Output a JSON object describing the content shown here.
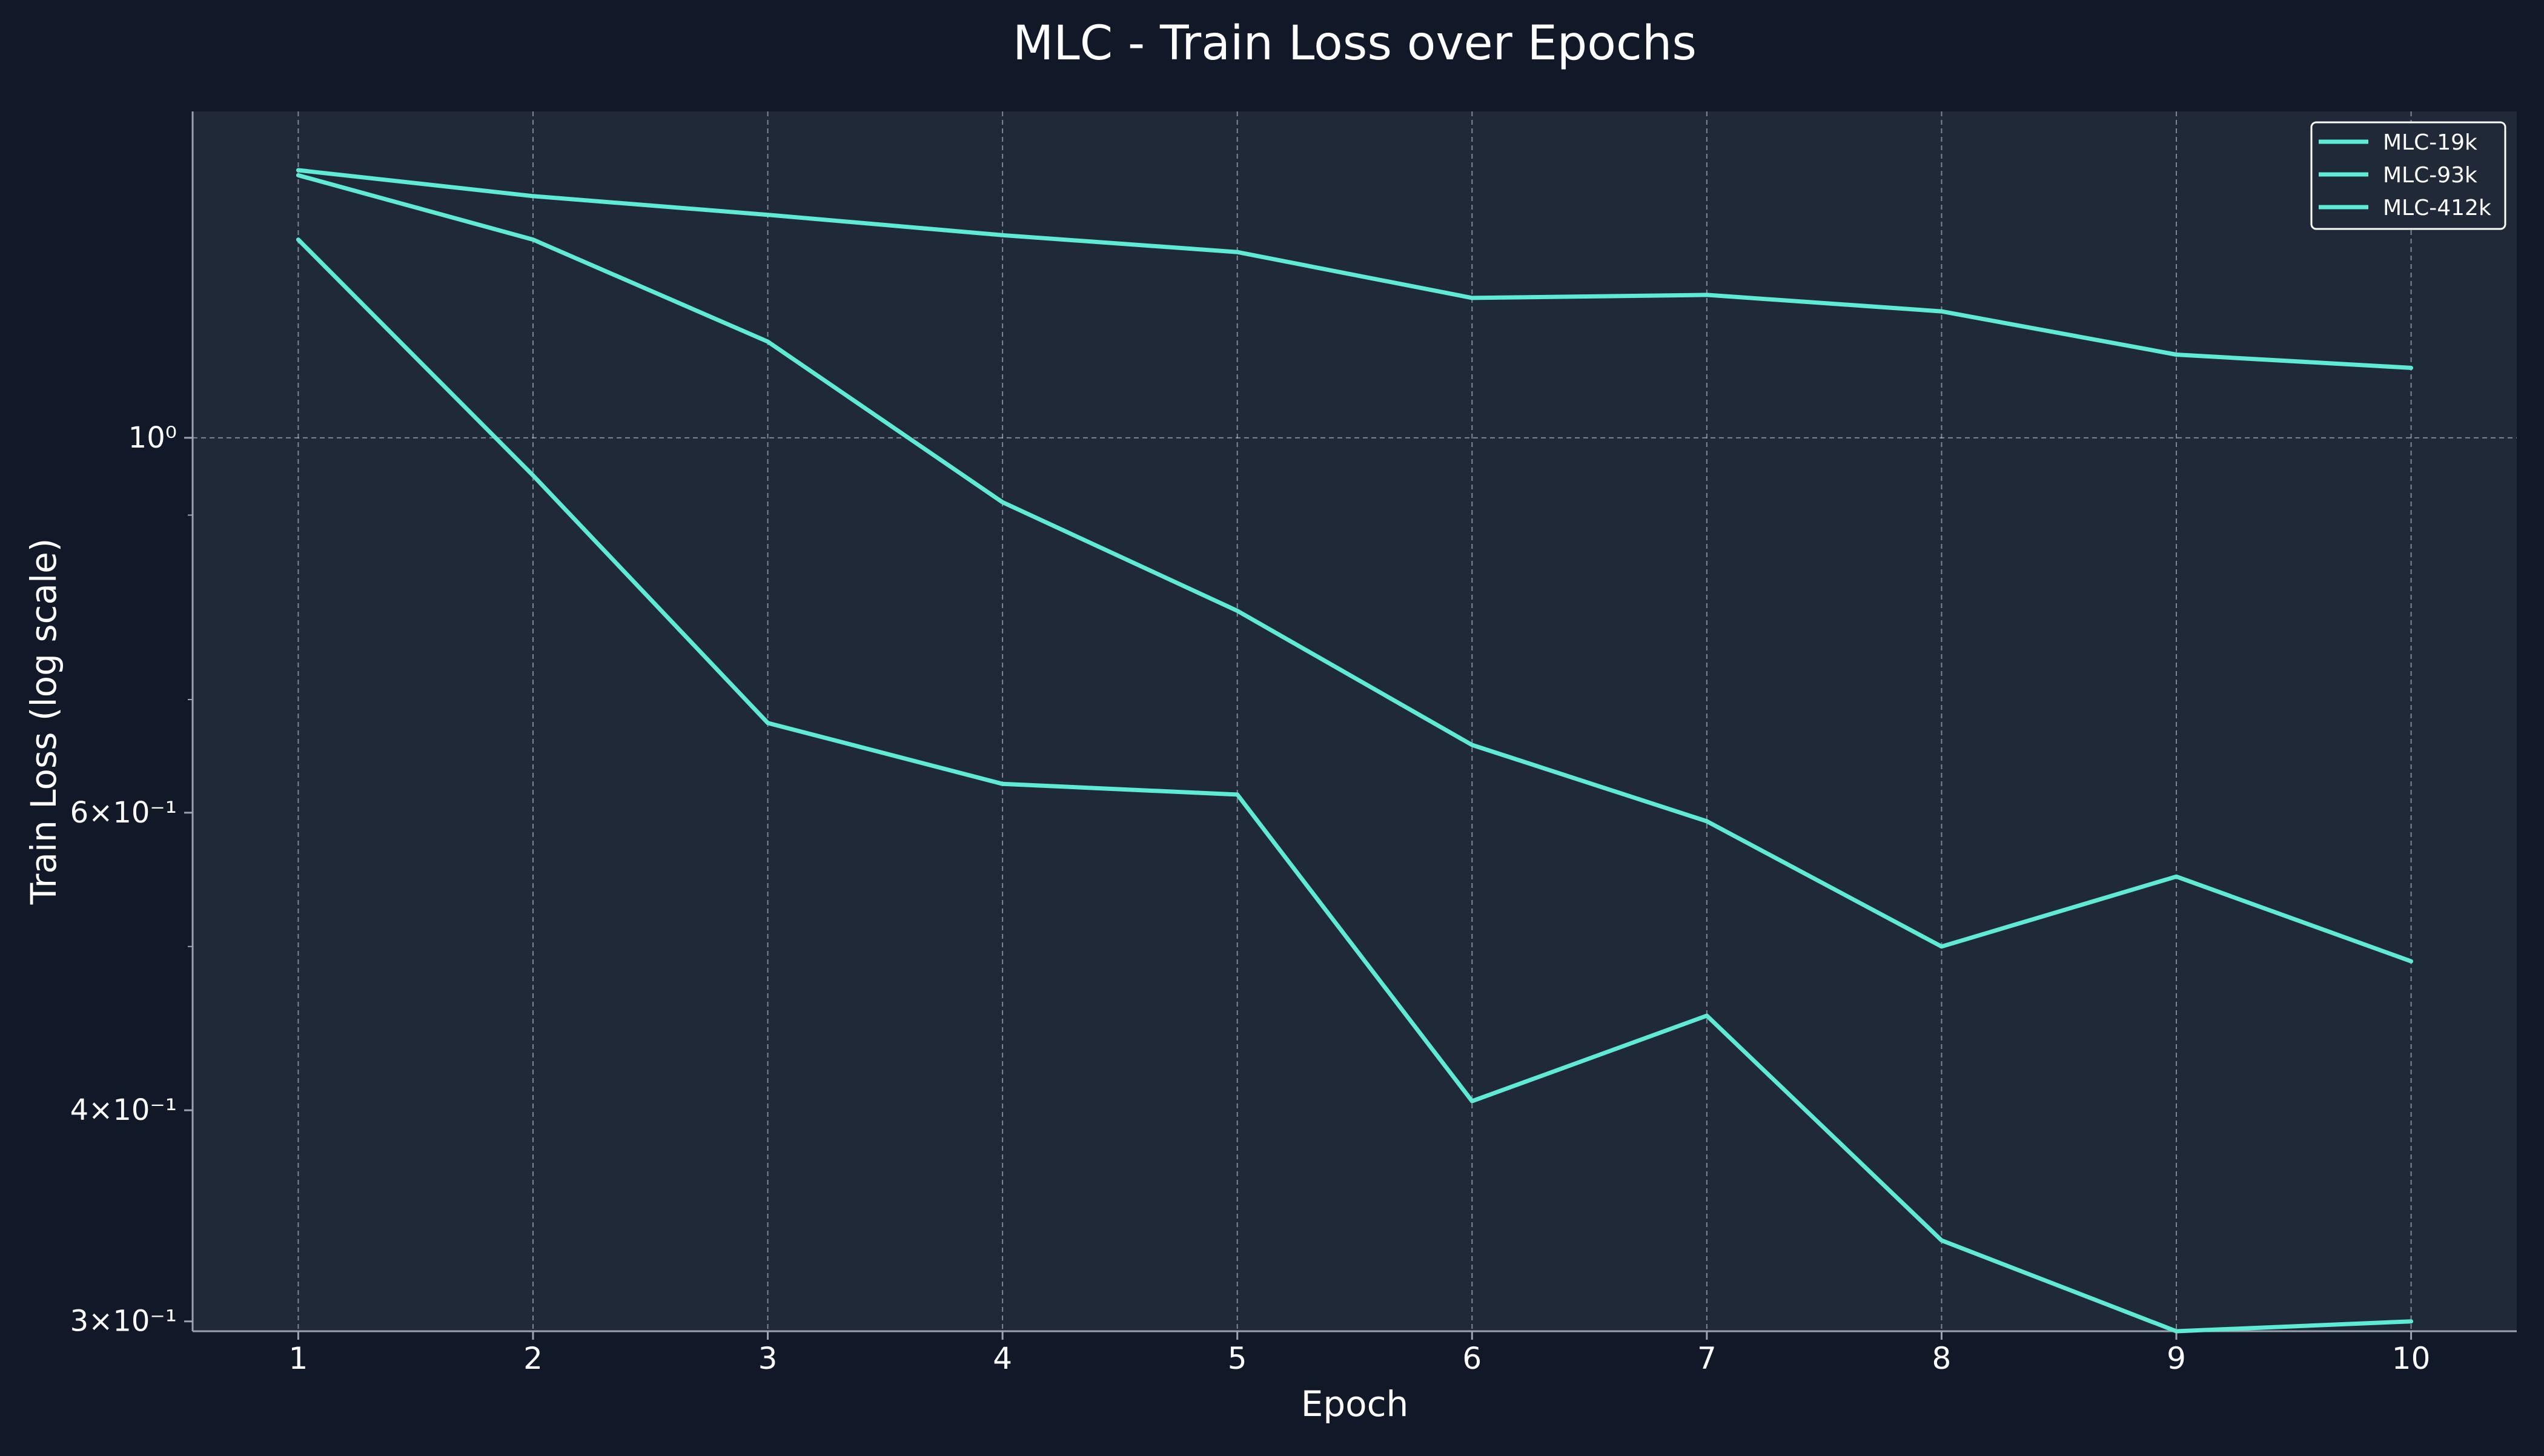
{
  "chart_data": {
    "type": "line",
    "title": "MLC - Train Loss over Epochs",
    "xlabel": "Epoch",
    "ylabel": "Train Loss (log scale)",
    "yscale": "log",
    "x": [
      1,
      2,
      3,
      4,
      5,
      6,
      7,
      8,
      9,
      10
    ],
    "xlim": [
      0.55,
      10.45
    ],
    "ylim": [
      0.296,
      1.56
    ],
    "series": [
      {
        "name": "MLC-19k",
        "values": [
          1.44,
          1.39,
          1.355,
          1.318,
          1.288,
          1.21,
          1.215,
          1.188,
          1.12,
          1.1
        ]
      },
      {
        "name": "MLC-93k",
        "values": [
          1.43,
          1.31,
          1.14,
          0.916,
          0.79,
          0.658,
          0.593,
          0.5,
          0.55,
          0.49
        ]
      },
      {
        "name": "MLC-412k",
        "values": [
          1.31,
          0.95,
          0.678,
          0.624,
          0.615,
          0.405,
          0.455,
          0.335,
          0.296,
          0.3
        ]
      }
    ],
    "y_major_ticks": [
      {
        "value": 1.0,
        "label": "10⁰"
      },
      {
        "value": 0.6,
        "label": "6×10⁻¹"
      },
      {
        "value": 0.4,
        "label": "4×10⁻¹"
      },
      {
        "value": 0.3,
        "label": "3×10⁻¹"
      }
    ],
    "y_minor_ticks": [
      0.9,
      0.7,
      0.5
    ],
    "x_tick_labels": [
      "1",
      "2",
      "3",
      "4",
      "5",
      "6",
      "7",
      "8",
      "9",
      "10"
    ],
    "grid": true,
    "legend_position": "top-right",
    "colors": {
      "background": "#111827",
      "plot_background": "#1f2937",
      "line": "#5eead4",
      "text": "#ffffff",
      "grid": "#cbd5e1",
      "axis": "#9ca3af",
      "legend_border": "#ffffff"
    }
  }
}
